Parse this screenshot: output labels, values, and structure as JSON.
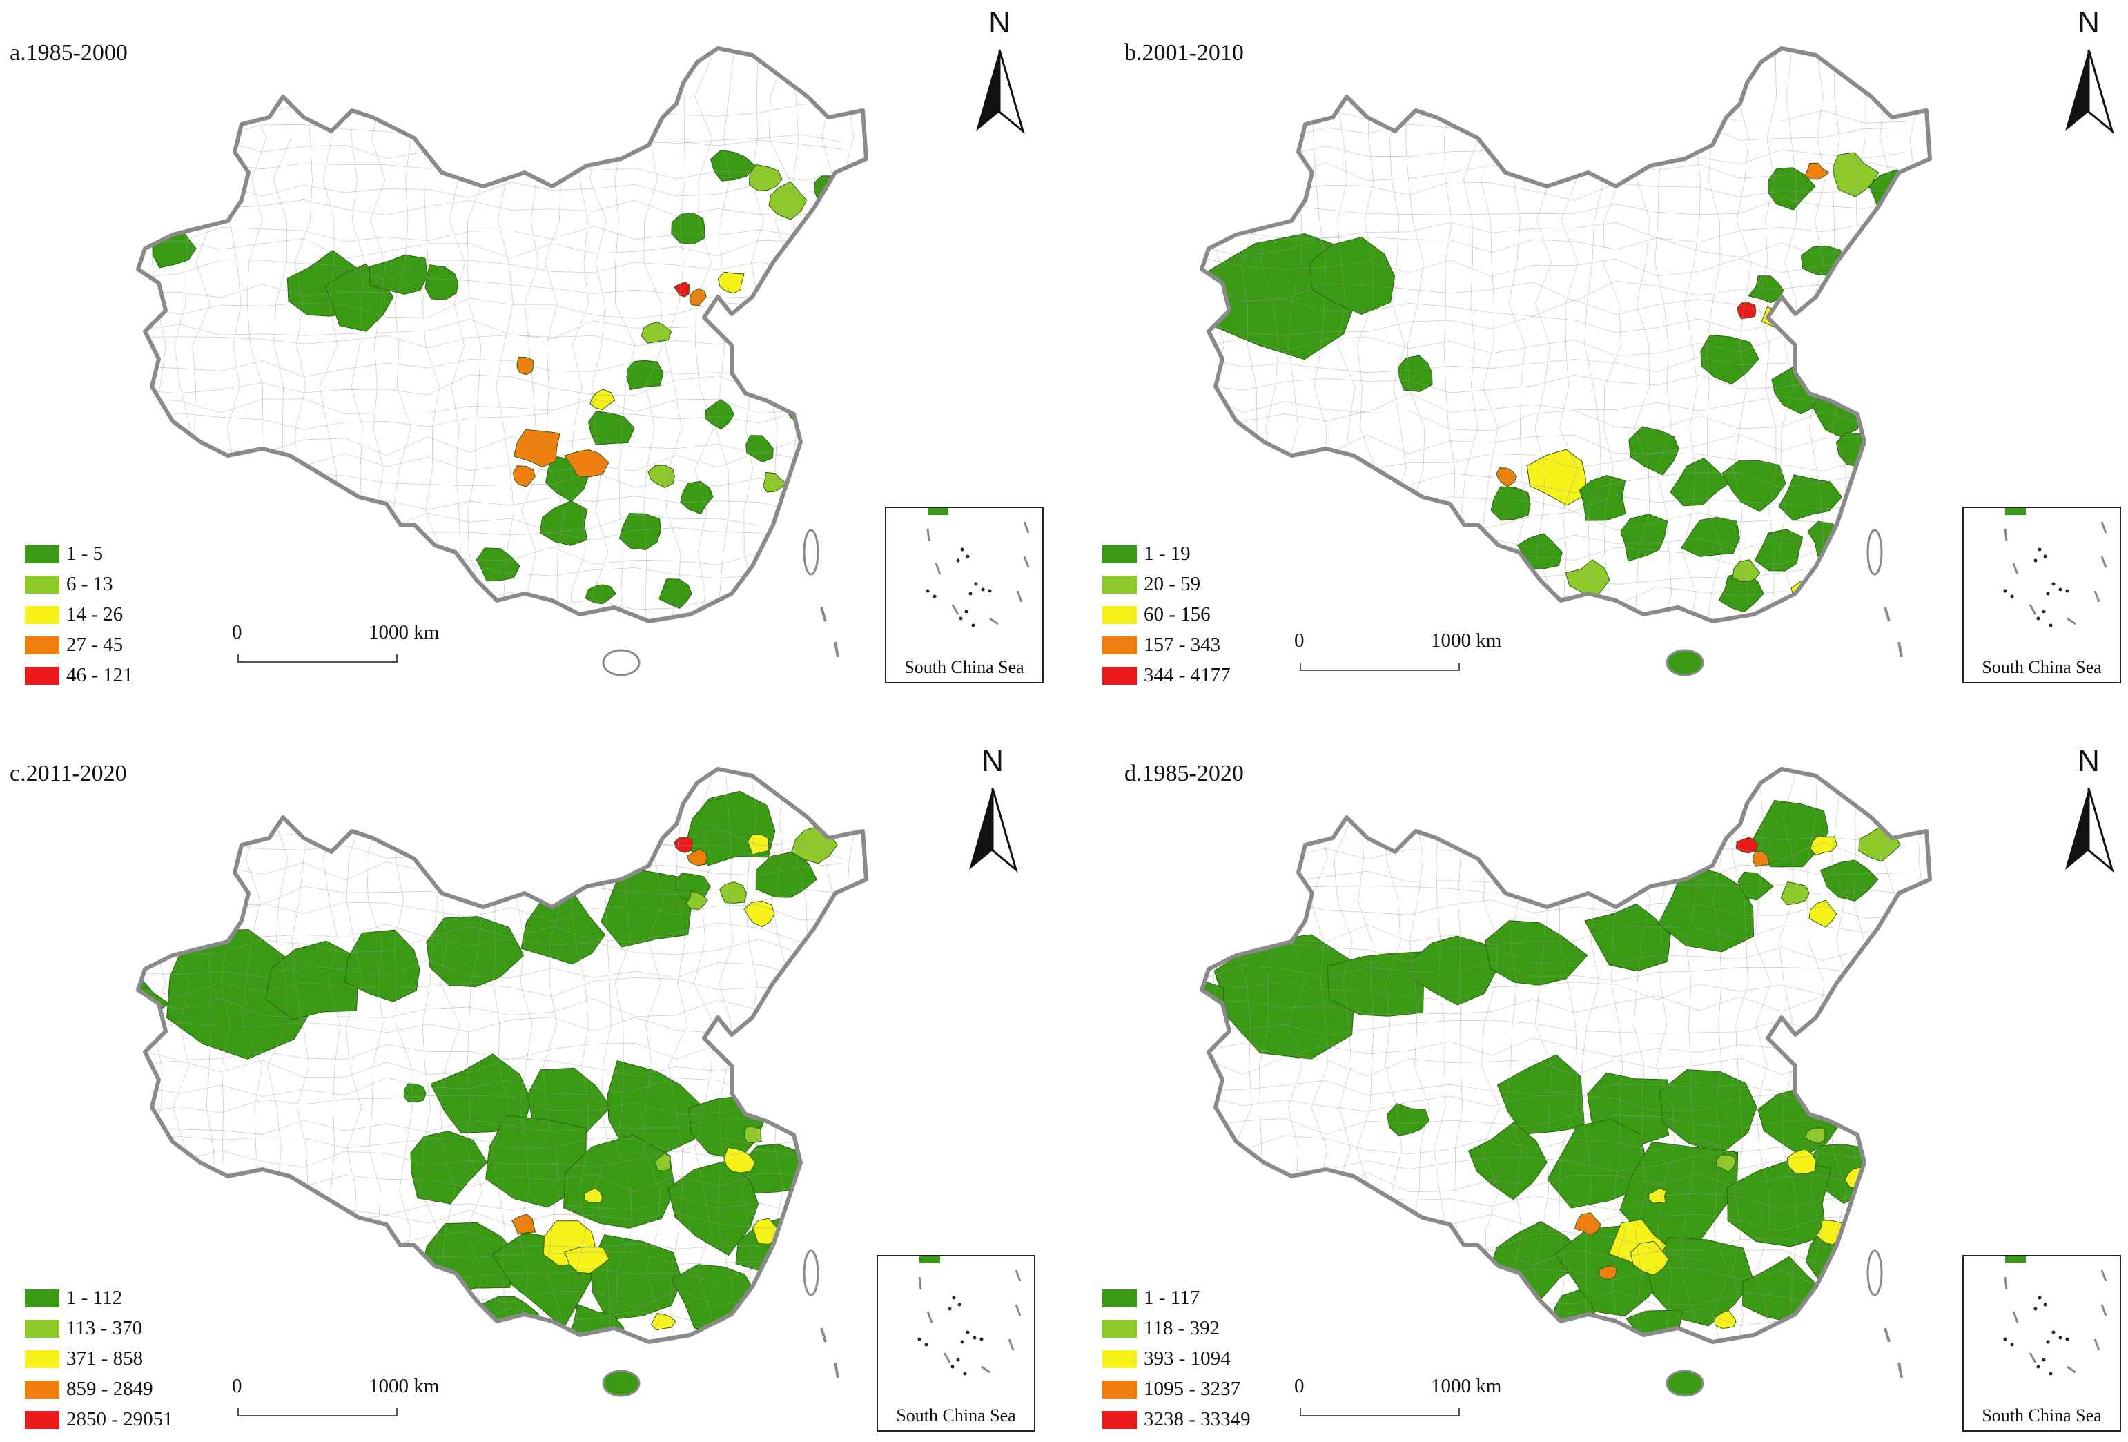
{
  "colors": {
    "class1": "#3a9a14",
    "class2": "#8ec92a",
    "class3": "#f6f21a",
    "class4": "#f07f0d",
    "class5": "#ec1a1a",
    "border": "#8a8a8a",
    "district_lines": "#9a9a9a"
  },
  "north_arrow": {
    "label": "N"
  },
  "scale_bar": {
    "start": "0",
    "end": "1000 km"
  },
  "inset": {
    "label": "South China Sea"
  },
  "panels": [
    {
      "id": "a",
      "title": "a.1985-2000",
      "legend": [
        "1 - 5",
        "6 - 13",
        "14 - 26",
        "27 - 45",
        "46 - 121"
      ]
    },
    {
      "id": "b",
      "title": "b.2001-2010",
      "legend": [
        "1 - 19",
        "20 - 59",
        "60 - 156",
        "157 - 343",
        "344 - 4177"
      ]
    },
    {
      "id": "c",
      "title": "c.2011-2020",
      "legend": [
        "1 - 112",
        "113 - 370",
        "371 - 858",
        "859 - 2849",
        "2850 - 29051"
      ]
    },
    {
      "id": "d",
      "title": "d.1985-2020",
      "legend": [
        "1 - 117",
        "118 - 392",
        "393 - 1094",
        "1095 - 3237",
        "3238 - 33349"
      ]
    }
  ]
}
